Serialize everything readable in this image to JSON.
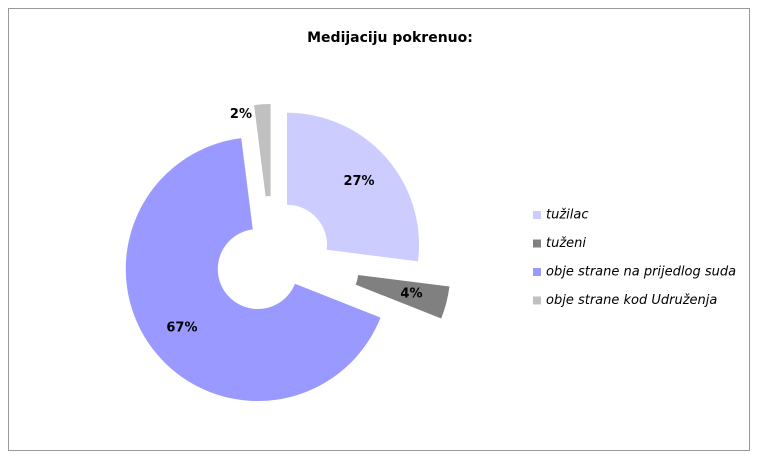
{
  "chart_data": {
    "type": "pie",
    "title": "Medijaciju pokrenuo:",
    "categories": [
      "tužilac",
      "tuženi",
      "obje strane na prijedlog suda",
      "obje strane kod Udruženja"
    ],
    "values": [
      27,
      4,
      67,
      2
    ],
    "value_labels": [
      "27%",
      "4%",
      "67%",
      "2%"
    ],
    "colors": [
      "#ccccff",
      "#808080",
      "#9999ff",
      "#c0c0c0"
    ],
    "donut": true,
    "legend": "right"
  }
}
